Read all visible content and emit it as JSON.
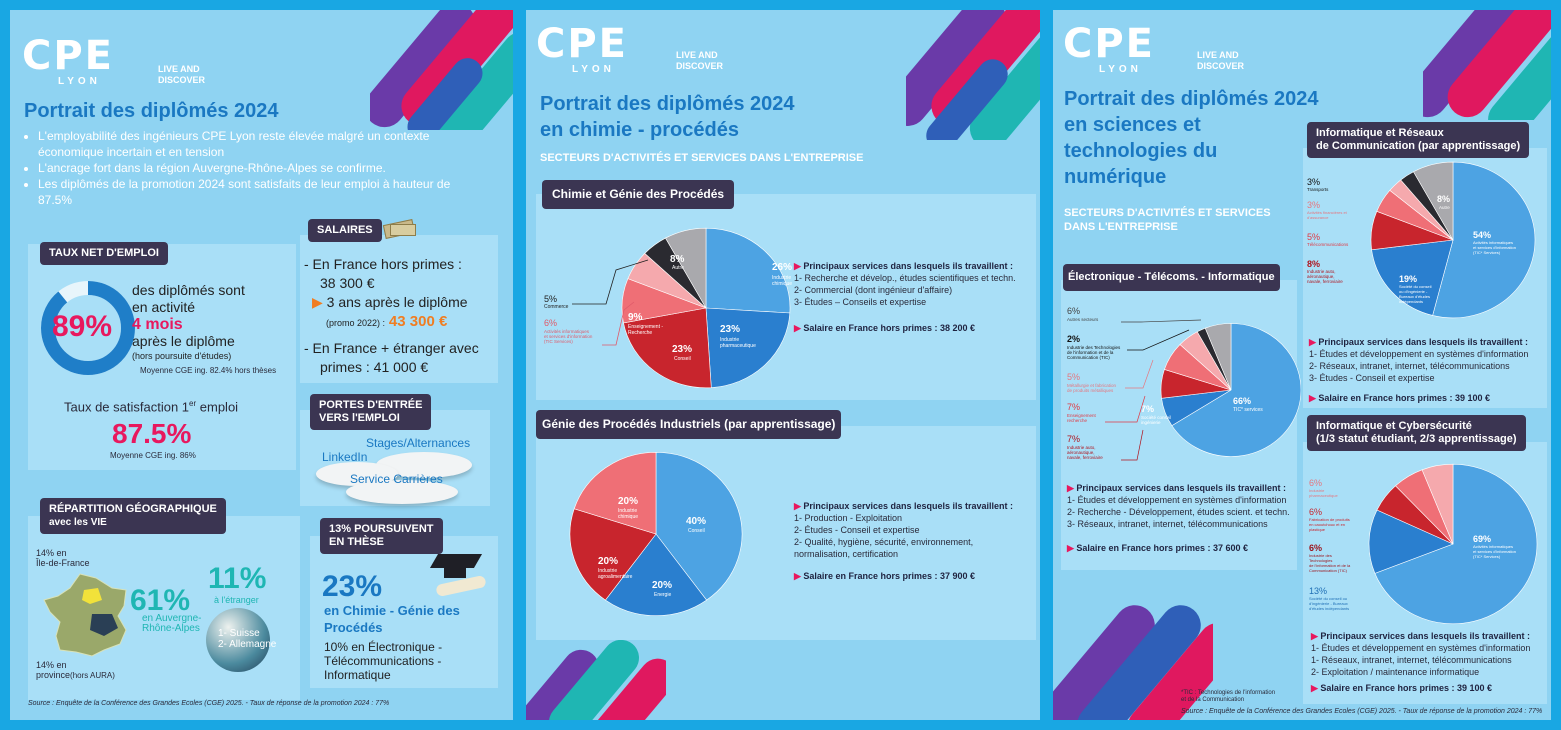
{
  "logo": {
    "name": "CPE",
    "city": "LYON",
    "tagline": "LIVE AND\nDISCOVER"
  },
  "p1": {
    "title": "Portrait des diplômés 2024",
    "bullets": [
      "L'employabilité des ingénieurs CPE Lyon reste élevée malgré un contexte économique incertain et en tension",
      "L'ancrage fort dans la région Auvergne-Rhône-Alpes se confirme.",
      "Les diplômés de la promotion 2024 sont satisfaits de leur emploi à hauteur de 87.5%"
    ],
    "emploi": {
      "tag": "TAUX NET D'EMPLOI",
      "pct": "89%",
      "pct_value": 89,
      "l1": "des diplômés sont",
      "l2": "en activité",
      "l3": "4 mois",
      "l4": "après le diplôme",
      "l5": "(hors poursuite d'études)",
      "note": "Moyenne CGE ing. 82.4% hors thèses"
    },
    "satisfaction": {
      "label": "Taux de satisfaction 1",
      "sup": "er",
      "label2": " emploi",
      "pct": "87.5%",
      "note": "Moyenne CGE ing. 86%"
    },
    "salaires": {
      "tag": "SALAIRES",
      "l1": "-  En France hors primes :",
      "l2": "38 300 €",
      "l3": "3 ans après le diplôme",
      "l4": "(promo 2022) :",
      "l5": "43 300 €",
      "l6": "-  En France + étranger avec",
      "l7": "primes : 41 000 €"
    },
    "portes": {
      "tag": "PORTES D'ENTRÉE\nVERS l'EMPLOI",
      "a": "Stages/Alternances",
      "b": "LinkedIn",
      "c": "Service Carrières"
    },
    "geo": {
      "tag": "RÉPARTITION GÉOGRAPHIQUE",
      "tag2": "avec les VIE",
      "idf": "14% en\nÎle-de-France",
      "aura_pct": "61%",
      "aura": "en Auvergne-\nRhône-Alpes",
      "prov": "14% en\nprovince",
      "prov_note": "(hors AURA)",
      "etr_pct": "11%",
      "etr": "à l'étranger",
      "c1": "1- Suisse",
      "c2": "2- Allemagne"
    },
    "these": {
      "tag": "13% POURSUIVENT\nEN THÈSE",
      "pct": "23%",
      "l1": "en Chimie - Génie des\nProcédés",
      "l2": "10% en Électronique -\nTélécommunications -\nInformatique"
    },
    "source": "Source :  Enquête de la Conférence des Grandes Ecoles (CGE) 2025.  - Taux de réponse de la promotion 2024 : 77%"
  },
  "p2": {
    "title": "Portrait des diplômés 2024\nen chimie - procédés",
    "sub": "SECTEURS D'ACTIVITÉS ET SERVICES DANS L'ENTREPRISE",
    "s1": {
      "tag": "Chimie et Génie des Procédés",
      "labels": {
        "a_pct": "26%",
        "a": "Industrie\nchimique",
        "b_pct": "23%",
        "b": "Industrie\npharmaceutique",
        "c_pct": "23%",
        "c": "Conseil",
        "d_pct": "9%",
        "d": "Enseignement -\nRecherche",
        "e_pct": "6%",
        "e": "Activités informatiques\net services d'information\n(TIC Services)",
        "f_pct": "5%",
        "f": "Commerce",
        "g_pct": "8%",
        "g": "Autre"
      },
      "h": "Principaux services dans lesquels ils travaillent :",
      "items": [
        "1- Recherche et dévelop., études scientifiques et techn.",
        "2- Commercial (dont ingénieur d'affaire)",
        "3- Études – Conseils et expertise"
      ],
      "sal": "Salaire en France hors primes : 38 200 €"
    },
    "s2": {
      "tag": "Génie des Procédés Industriels (par apprentissage)",
      "labels": {
        "a_pct": "40%",
        "a": "Conseil",
        "b_pct": "20%",
        "b": "Energie",
        "c_pct": "20%",
        "c": "Industrie\nagroalimentaire",
        "d_pct": "20%",
        "d": "Industrie\nchimique"
      },
      "h": "Principaux services dans lesquels ils travaillent :",
      "items": [
        "1- Production - Exploitation",
        "2- Études - Conseil et expertise",
        "2- Qualité, hygiène, sécurité, environnement,\nnormalisation, certification"
      ],
      "sal": "Salaire en France hors primes : 37 900 €"
    }
  },
  "p3": {
    "title": "Portrait des diplômés 2024\nen sciences et\ntechnologies du\nnumérique",
    "sub": "SECTEURS D'ACTIVITÉS ET SERVICES\nDANS L'ENTREPRISE",
    "s1": {
      "tag": "Électronique - Télécoms. - Informatique",
      "labels": {
        "a_pct": "6%",
        "a": "Autres secteurs",
        "b_pct": "2%",
        "b": "Industrie des Technologies\nde l'information et de la\nCommunication (TIC)",
        "c_pct": "5%",
        "c": "Métallurgie et fabrication\nde produits métalliques",
        "d_pct": "7%",
        "d": "Enseignement\nrecherche",
        "e_pct": "7%",
        "e": "Industrie auto,\naéronautique,\nnavale, ferroviaire",
        "f_pct": "7%",
        "f": "Société conseil\ningénierie",
        "g_pct": "66%",
        "g": "TIC* services"
      },
      "h": "Principaux services dans lesquels ils travaillent :",
      "items": [
        "1- Études et développement en systèmes d'information",
        "2- Recherche - Développement, études scient. et techn.",
        "3- Réseaux, intranet, internet, télécommunications"
      ],
      "sal": "Salaire en France hors primes : 37 600 €"
    },
    "s2": {
      "tag": "Informatique et Réseaux\nde Communication (par apprentissage)",
      "labels": {
        "a_pct": "3%",
        "a": "Transports",
        "b_pct": "3%",
        "b": "Activités financières et\nd'assurance",
        "c_pct": "5%",
        "c": "Télécommunications",
        "d_pct": "8%",
        "d": "Industrie auto,\naéronautique,\nnavale, ferroviaire",
        "e_pct": "8%",
        "e": "Autre",
        "f_pct": "54%",
        "f": "Activités informatiques\net services d'information\n(TIC* Services)",
        "g_pct": "19%",
        "g": "Société du conseil\nou d'ingénierie -\nBureaux d'études\nindépendants"
      },
      "h": "Principaux services dans lesquels ils travaillent :",
      "items": [
        "1- Études et développement en systèmes d'information",
        "2- Réseaux, intranet, internet, télécommunications",
        "3- Études - Conseil et expertise"
      ],
      "sal": "Salaire en France hors primes : 39 100 €"
    },
    "s3": {
      "tag": "Informatique et Cybersécurité\n(1/3 statut étudiant, 2/3 apprentissage)",
      "labels": {
        "a_pct": "6%",
        "a": "Industrie\npharmaceutique",
        "b_pct": "6%",
        "b": "Fabrication de produits\nen caoutchouc et en\nplastique",
        "c_pct": "6%",
        "c": "Industrie des\nTechnologies\nde l'information et de la\nCommunication (TIC)",
        "d_pct": "13%",
        "d": "Société du conseil ou\nd'ingénierie - Bureaux\nd'études indépendants",
        "e_pct": "69%",
        "e": "Activités informatiques\net services d'information\n(TIC* Services)"
      },
      "h": "Principaux services dans lesquels ils travaillent :",
      "items": [
        "1- Études et développement en systèmes d'information",
        "1- Réseaux, intranet, internet, télécommunications",
        "2- Exploitation / maintenance informatique"
      ],
      "sal": "Salaire en France hors primes : 39 100 €"
    },
    "foot1": "*TIC : Technologies de l'information\net de la Communication",
    "source": "Source : Enquête de la Conférence des Grandes Ecoles (CGE) 2025.  - Taux de réponse de la promotion 2024 : 77%"
  }
}
